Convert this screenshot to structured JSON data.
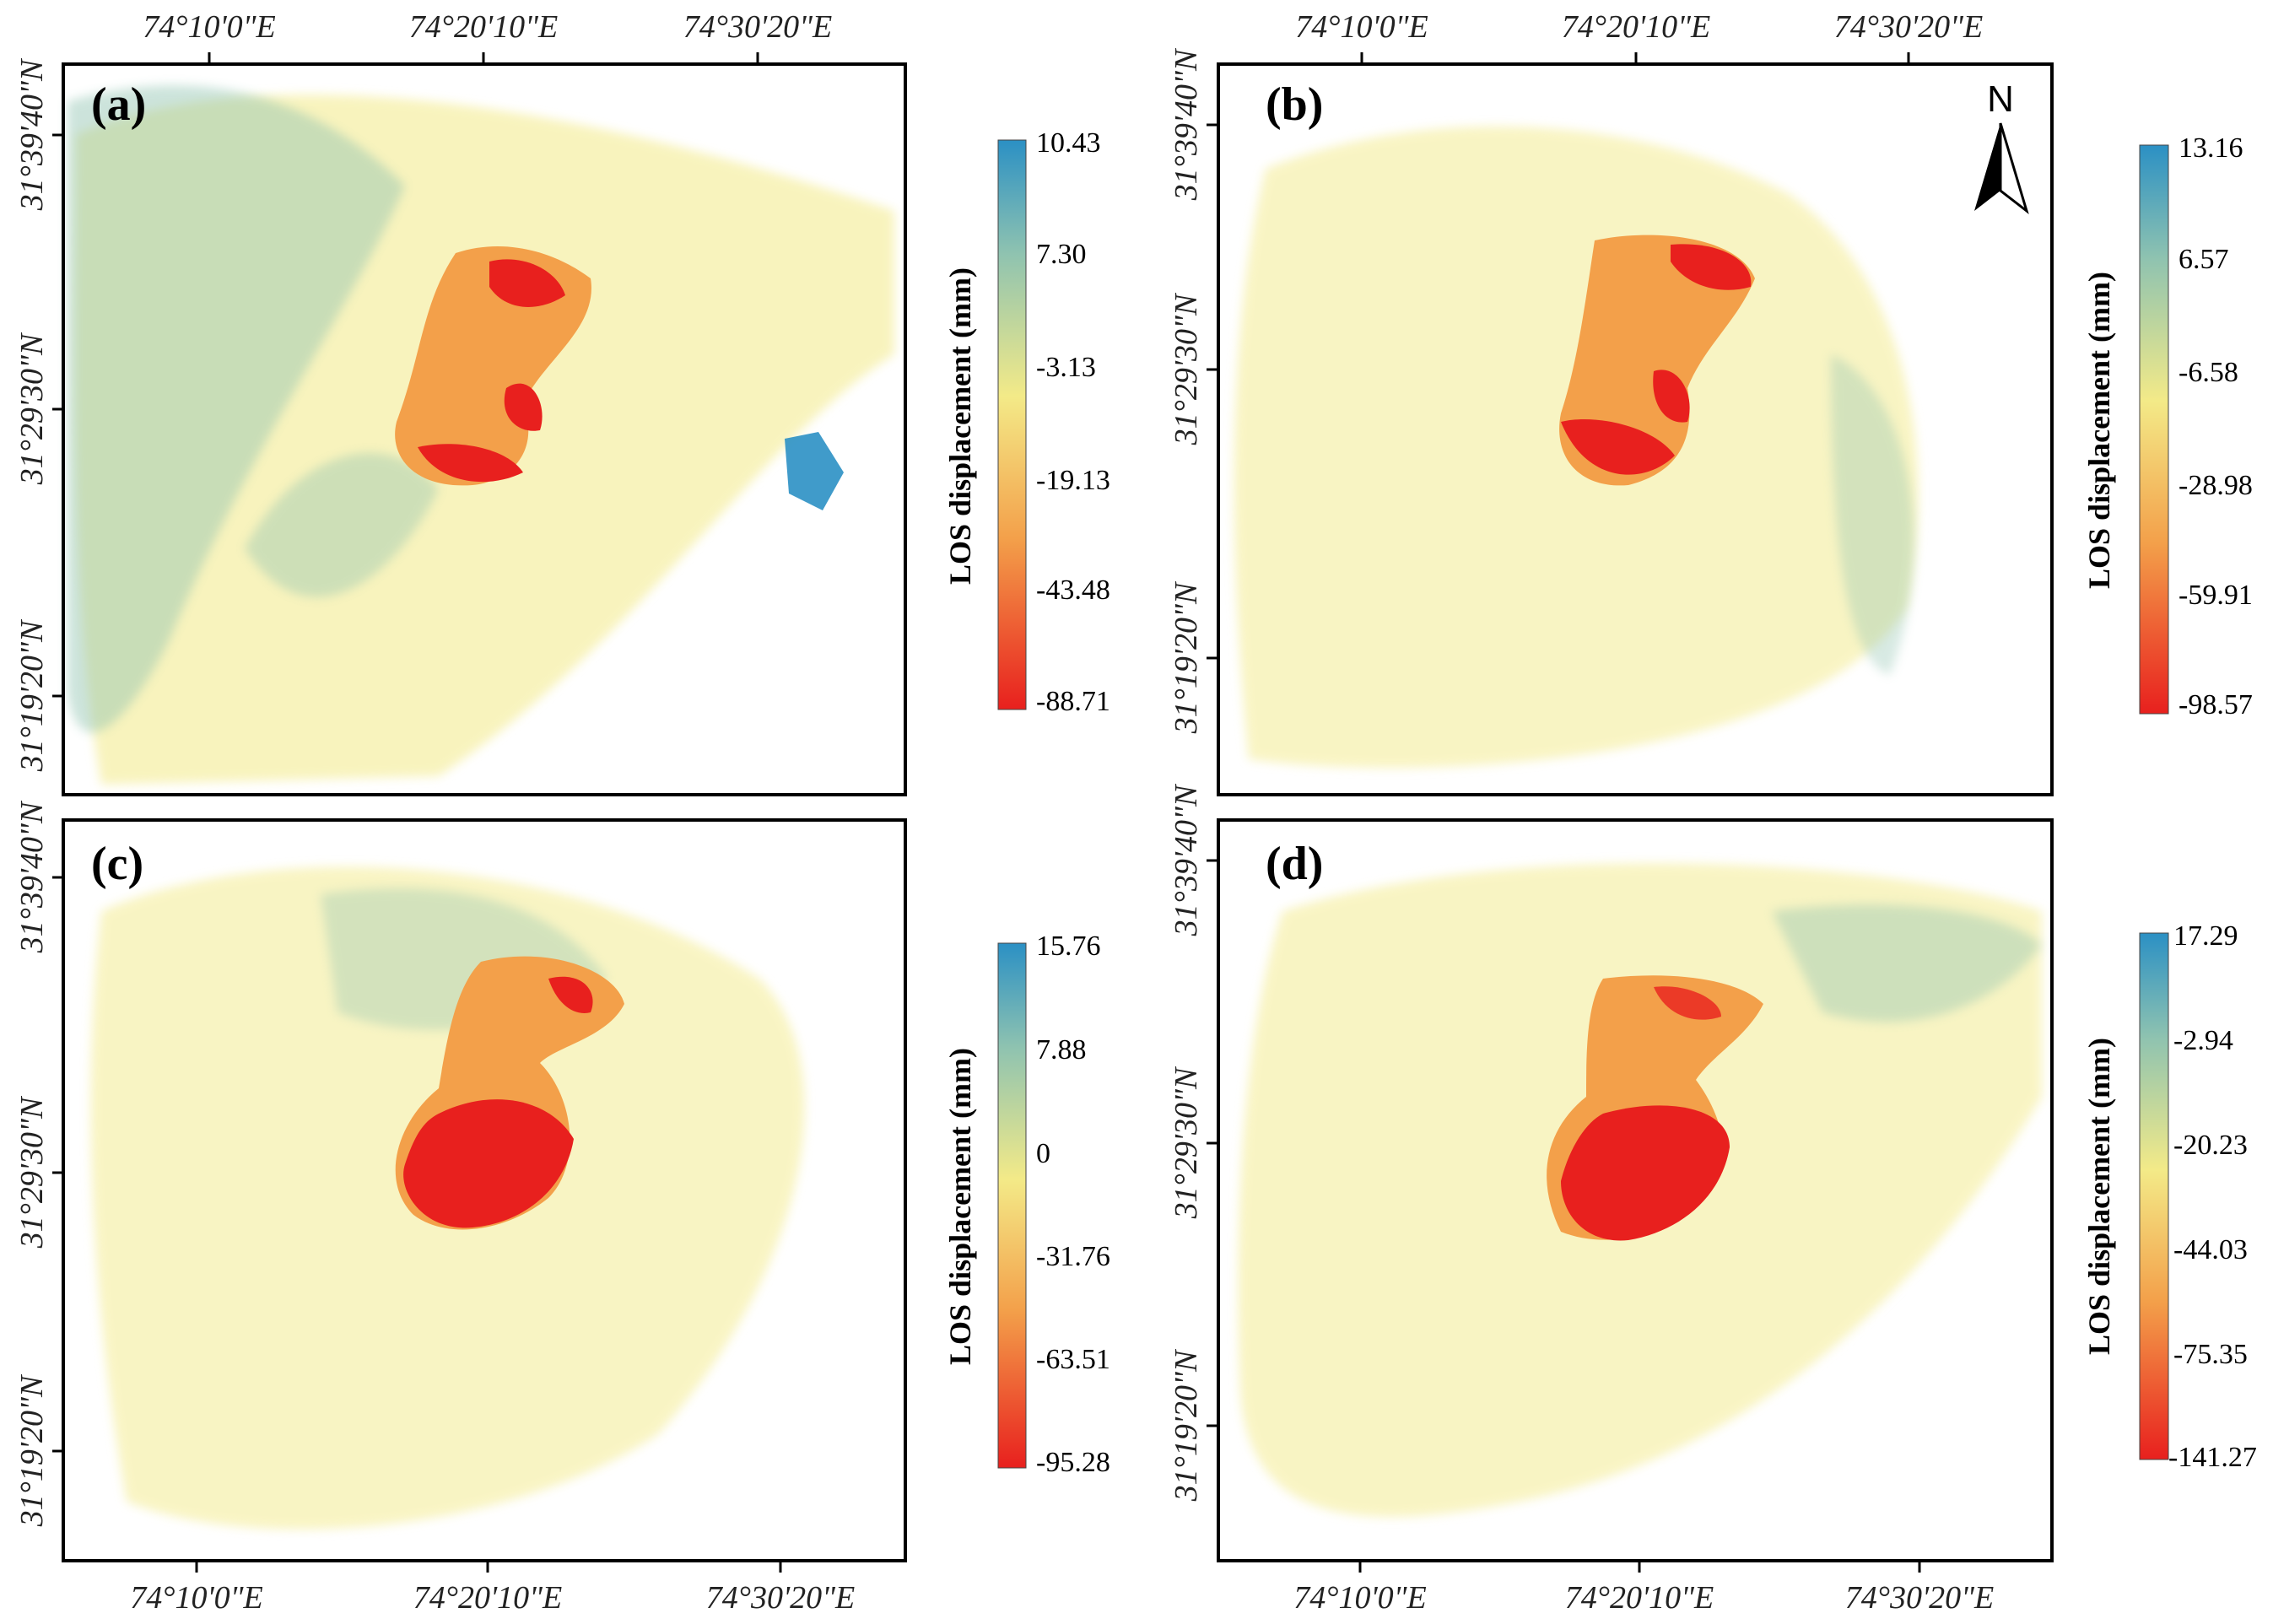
{
  "figure": {
    "lon_ticks": [
      "74°10'0\"E",
      "74°20'10\"E",
      "74°30'20\"E"
    ],
    "lat_ticks": [
      "31°39'40\"N",
      "31°29'30\"N",
      "31°19'20\"N"
    ],
    "colorbar_title": "LOS displacement (mm)",
    "north_arrow_label": "N",
    "colors": {
      "high": "#2b90c4",
      "mid_high": "#8fc3b0",
      "mid": "#f3ea88",
      "low_mid": "#f3a04a",
      "low": "#e8201e"
    }
  },
  "panels": [
    {
      "label": "(a)",
      "colorbar_values": [
        "10.43",
        "7.30",
        "-3.13",
        "-19.13",
        "-43.48",
        "-88.71"
      ]
    },
    {
      "label": "(b)",
      "colorbar_values": [
        "13.16",
        "6.57",
        "-6.58",
        "-28.98",
        "-59.91",
        "-98.57"
      ]
    },
    {
      "label": "(c)",
      "colorbar_values": [
        "15.76",
        "7.88",
        "0",
        "-31.76",
        "-63.51",
        "-95.28"
      ]
    },
    {
      "label": "(d)",
      "colorbar_values": [
        "17.29",
        "-2.94",
        "-20.23",
        "-44.03",
        "-75.35",
        "-141.27"
      ]
    }
  ]
}
